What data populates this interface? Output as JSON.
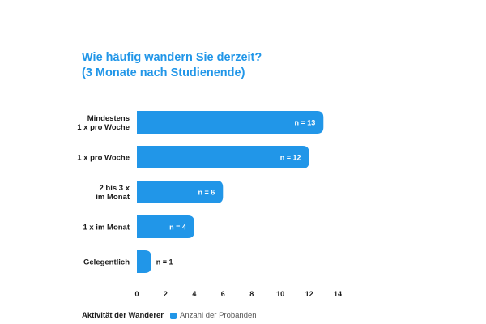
{
  "colors": {
    "bar": "#2196e8",
    "title": "#2196e8",
    "text": "#1a1a1a"
  },
  "chart_data": {
    "type": "bar",
    "orientation": "horizontal",
    "title": "Wie häufig wandern Sie derzeit?",
    "subtitle": "(3 Monate nach Studienende)",
    "categories": [
      [
        "Mindestens",
        "1 x pro Woche"
      ],
      [
        "1 x pro Woche"
      ],
      [
        "2 bis 3 x",
        "im Monat"
      ],
      [
        "1 x im Monat"
      ],
      [
        "Gelegentlich"
      ]
    ],
    "series": [
      {
        "name": "Anzahl der Probanden",
        "values": [
          13,
          12,
          6,
          4,
          1
        ]
      }
    ],
    "data_labels": [
      "n = 13",
      "n = 12",
      "n = 6",
      "n = 4",
      "n = 1"
    ],
    "xlim": [
      0,
      14
    ],
    "xticks": [
      "0",
      "2",
      "4",
      "6",
      "8",
      "10",
      "12",
      "14"
    ],
    "grid": false,
    "legend": {
      "title": "Aktivität der Wanderer",
      "position": "bottom-left"
    }
  }
}
